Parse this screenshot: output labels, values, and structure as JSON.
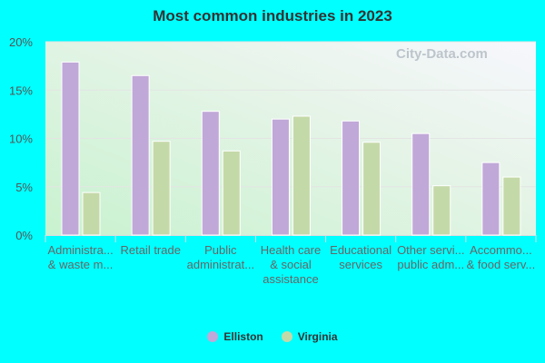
{
  "chart_data": {
    "type": "bar",
    "title": "Most common industries in 2023",
    "categories": [
      [
        "Administra...",
        "& waste m..."
      ],
      [
        "Retail trade"
      ],
      [
        "Public",
        "administrat..."
      ],
      [
        "Health care",
        "& social",
        "assistance"
      ],
      [
        "Educational",
        "services"
      ],
      [
        "Other servi...",
        "public adm..."
      ],
      [
        "Accommo...",
        "& food serv..."
      ]
    ],
    "series": [
      {
        "name": "Elliston",
        "color": "#c0a8d8",
        "values": [
          17.9,
          16.5,
          12.8,
          12.0,
          11.8,
          10.5,
          7.5
        ]
      },
      {
        "name": "Virginia",
        "color": "#c4d9a8",
        "values": [
          4.4,
          9.7,
          8.7,
          12.3,
          9.6,
          5.1,
          6.0
        ]
      }
    ],
    "ylim": [
      0,
      20
    ],
    "yticks": [
      "0%",
      "5%",
      "10%",
      "15%",
      "20%"
    ],
    "grid": true,
    "legend": "bottom",
    "watermark": "City-Data.com"
  }
}
